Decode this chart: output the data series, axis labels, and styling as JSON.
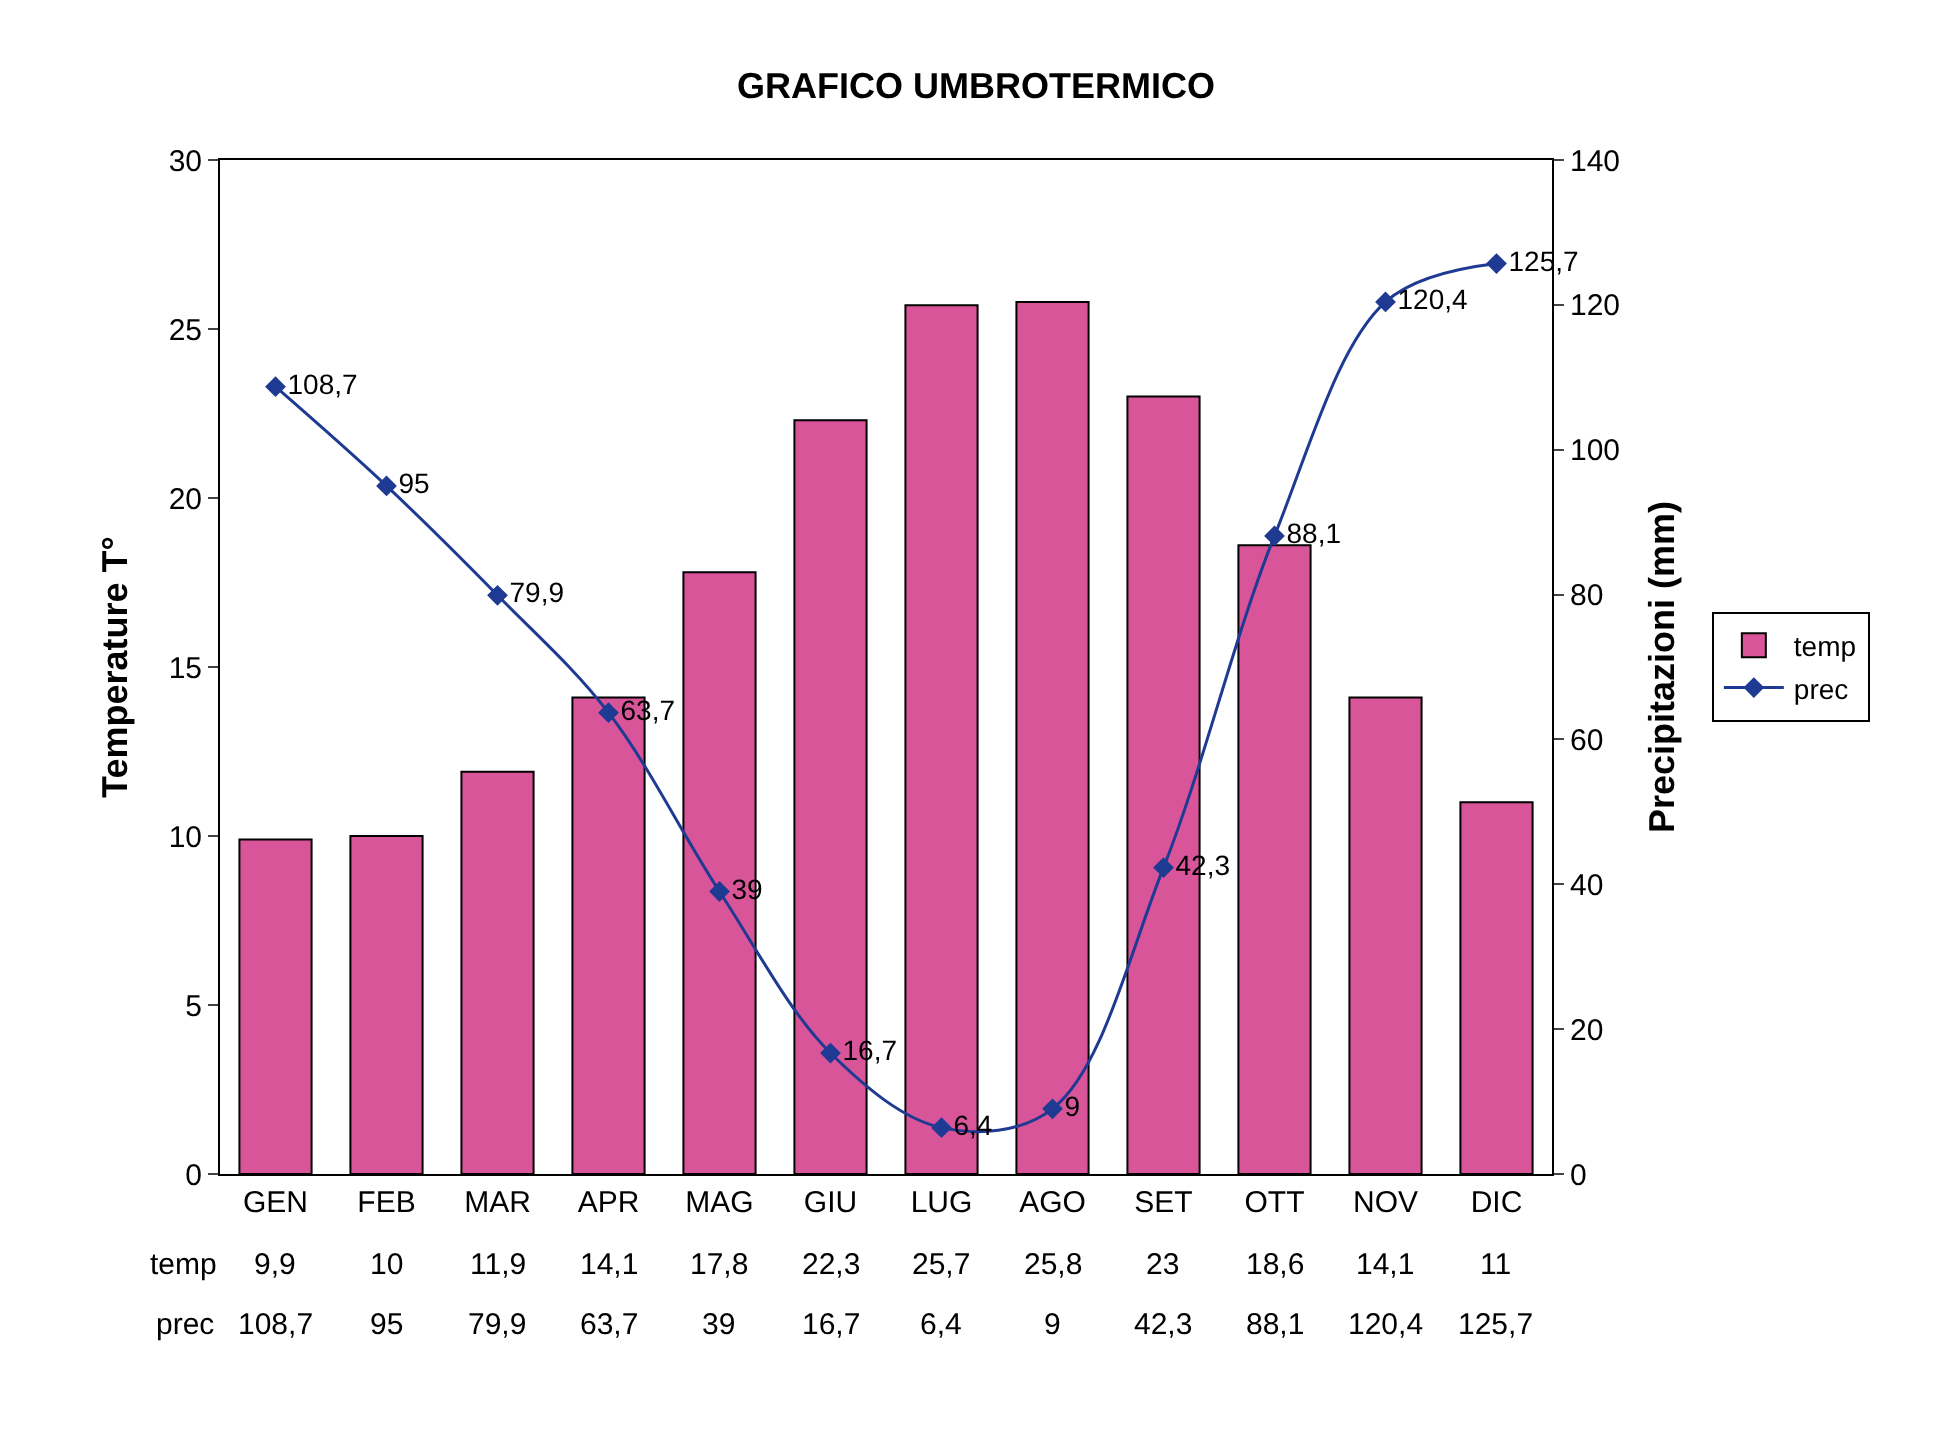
{
  "chart_data": {
    "type": "bar",
    "title": "GRAFICO UMBROTERMICO",
    "ylabel": "Temperature T°",
    "y2label": "Precipitazioni (mm)",
    "categories": [
      "GEN",
      "FEB",
      "MAR",
      "APR",
      "MAG",
      "GIU",
      "LUG",
      "AGO",
      "SET",
      "OTT",
      "NOV",
      "DIC"
    ],
    "series": [
      {
        "name": "temp",
        "color": "#d9559a",
        "values": [
          9.9,
          10,
          11.9,
          14.1,
          17.8,
          22.3,
          25.7,
          25.8,
          23,
          18.6,
          14.1,
          11
        ],
        "value_labels": [
          "9,9",
          "10",
          "11,9",
          "14,1",
          "17,8",
          "22,3",
          "25,7",
          "25,8",
          "23",
          "18,6",
          "14,1",
          "11"
        ]
      },
      {
        "name": "prec",
        "type": "line",
        "axis": "y2",
        "color": "#1f3a93",
        "marker": "diamond",
        "values": [
          108.7,
          95,
          79.9,
          63.7,
          39,
          16.7,
          6.4,
          9,
          42.3,
          88.1,
          120.4,
          125.7
        ],
        "value_labels": [
          "108,7",
          "95",
          "79,9",
          "63,7",
          "39",
          "16,7",
          "6,4",
          "9",
          "42,3",
          "88,1",
          "120,4",
          "125,7"
        ]
      }
    ],
    "ylim": [
      0,
      30
    ],
    "yticks": [
      0,
      5,
      10,
      15,
      20,
      25,
      30
    ],
    "y2lim": [
      0,
      140
    ],
    "y2ticks": [
      0,
      20,
      40,
      60,
      80,
      100,
      120,
      140
    ],
    "legend": "right"
  }
}
